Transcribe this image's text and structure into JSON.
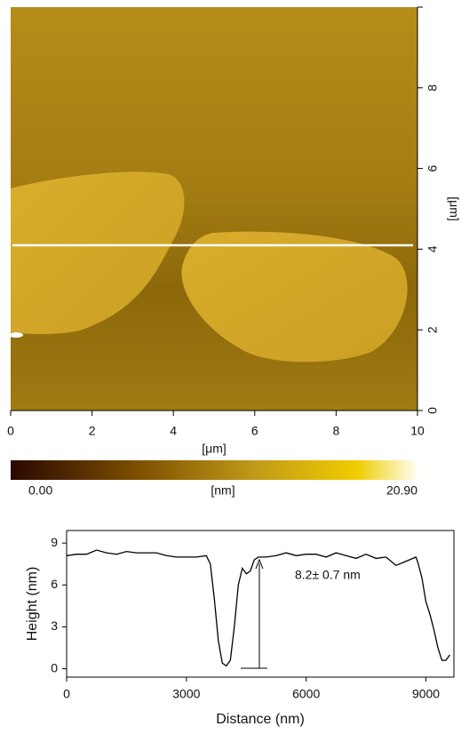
{
  "chart_data": [
    {
      "type": "image",
      "xlabel": "[μm]",
      "ylabel": "[μm]",
      "xlim": [
        0,
        10
      ],
      "ylim": [
        0,
        10
      ],
      "xticks": [
        0,
        2,
        4,
        6,
        8,
        10
      ],
      "yticks": [
        0,
        2,
        4,
        6,
        8
      ],
      "colorbar": {
        "label": "[nm]",
        "clim": [
          0,
          20.9
        ],
        "ticks": [
          {
            "value": 0,
            "label": "0.00"
          },
          {
            "value": 20.9,
            "label": "20.90"
          }
        ]
      }
    },
    {
      "type": "line",
      "xlabel": "Distance (nm)",
      "ylabel": "Height (nm)",
      "xlim": [
        0,
        9700
      ],
      "ylim": [
        -0.6,
        9.9
      ],
      "xticks": [
        0,
        3000,
        6000,
        9000
      ],
      "yticks": [
        0,
        3,
        6,
        9
      ],
      "annotation": "8.2± 0.7 nm",
      "x": [
        0,
        250,
        500,
        750,
        1000,
        1250,
        1500,
        1750,
        2000,
        2250,
        2500,
        2750,
        3000,
        3250,
        3500,
        3600,
        3700,
        3800,
        3900,
        4000,
        4100,
        4200,
        4300,
        4400,
        4500,
        4600,
        4700,
        4800,
        5000,
        5250,
        5500,
        5750,
        6000,
        6250,
        6500,
        6750,
        7000,
        7250,
        7500,
        7750,
        8000,
        8250,
        8500,
        8750,
        8800,
        8900,
        9000,
        9100,
        9200,
        9300,
        9400,
        9500,
        9600
      ],
      "series": [
        {
          "color": "#000000",
          "values": [
            8.1,
            8.2,
            8.2,
            8.5,
            8.3,
            8.2,
            8.4,
            8.3,
            8.3,
            8.3,
            8.1,
            8.0,
            8.0,
            8.0,
            8.1,
            7.5,
            5.0,
            2.0,
            0.4,
            0.2,
            0.6,
            3.0,
            6.0,
            7.2,
            6.8,
            7.0,
            7.8,
            8.0,
            8.0,
            8.1,
            8.3,
            8.1,
            8.2,
            8.2,
            8.0,
            8.3,
            8.1,
            7.9,
            8.2,
            7.9,
            8.0,
            7.4,
            7.7,
            8.0,
            7.6,
            6.5,
            4.8,
            3.9,
            2.8,
            1.5,
            0.6,
            0.6,
            1.0
          ]
        }
      ]
    }
  ]
}
